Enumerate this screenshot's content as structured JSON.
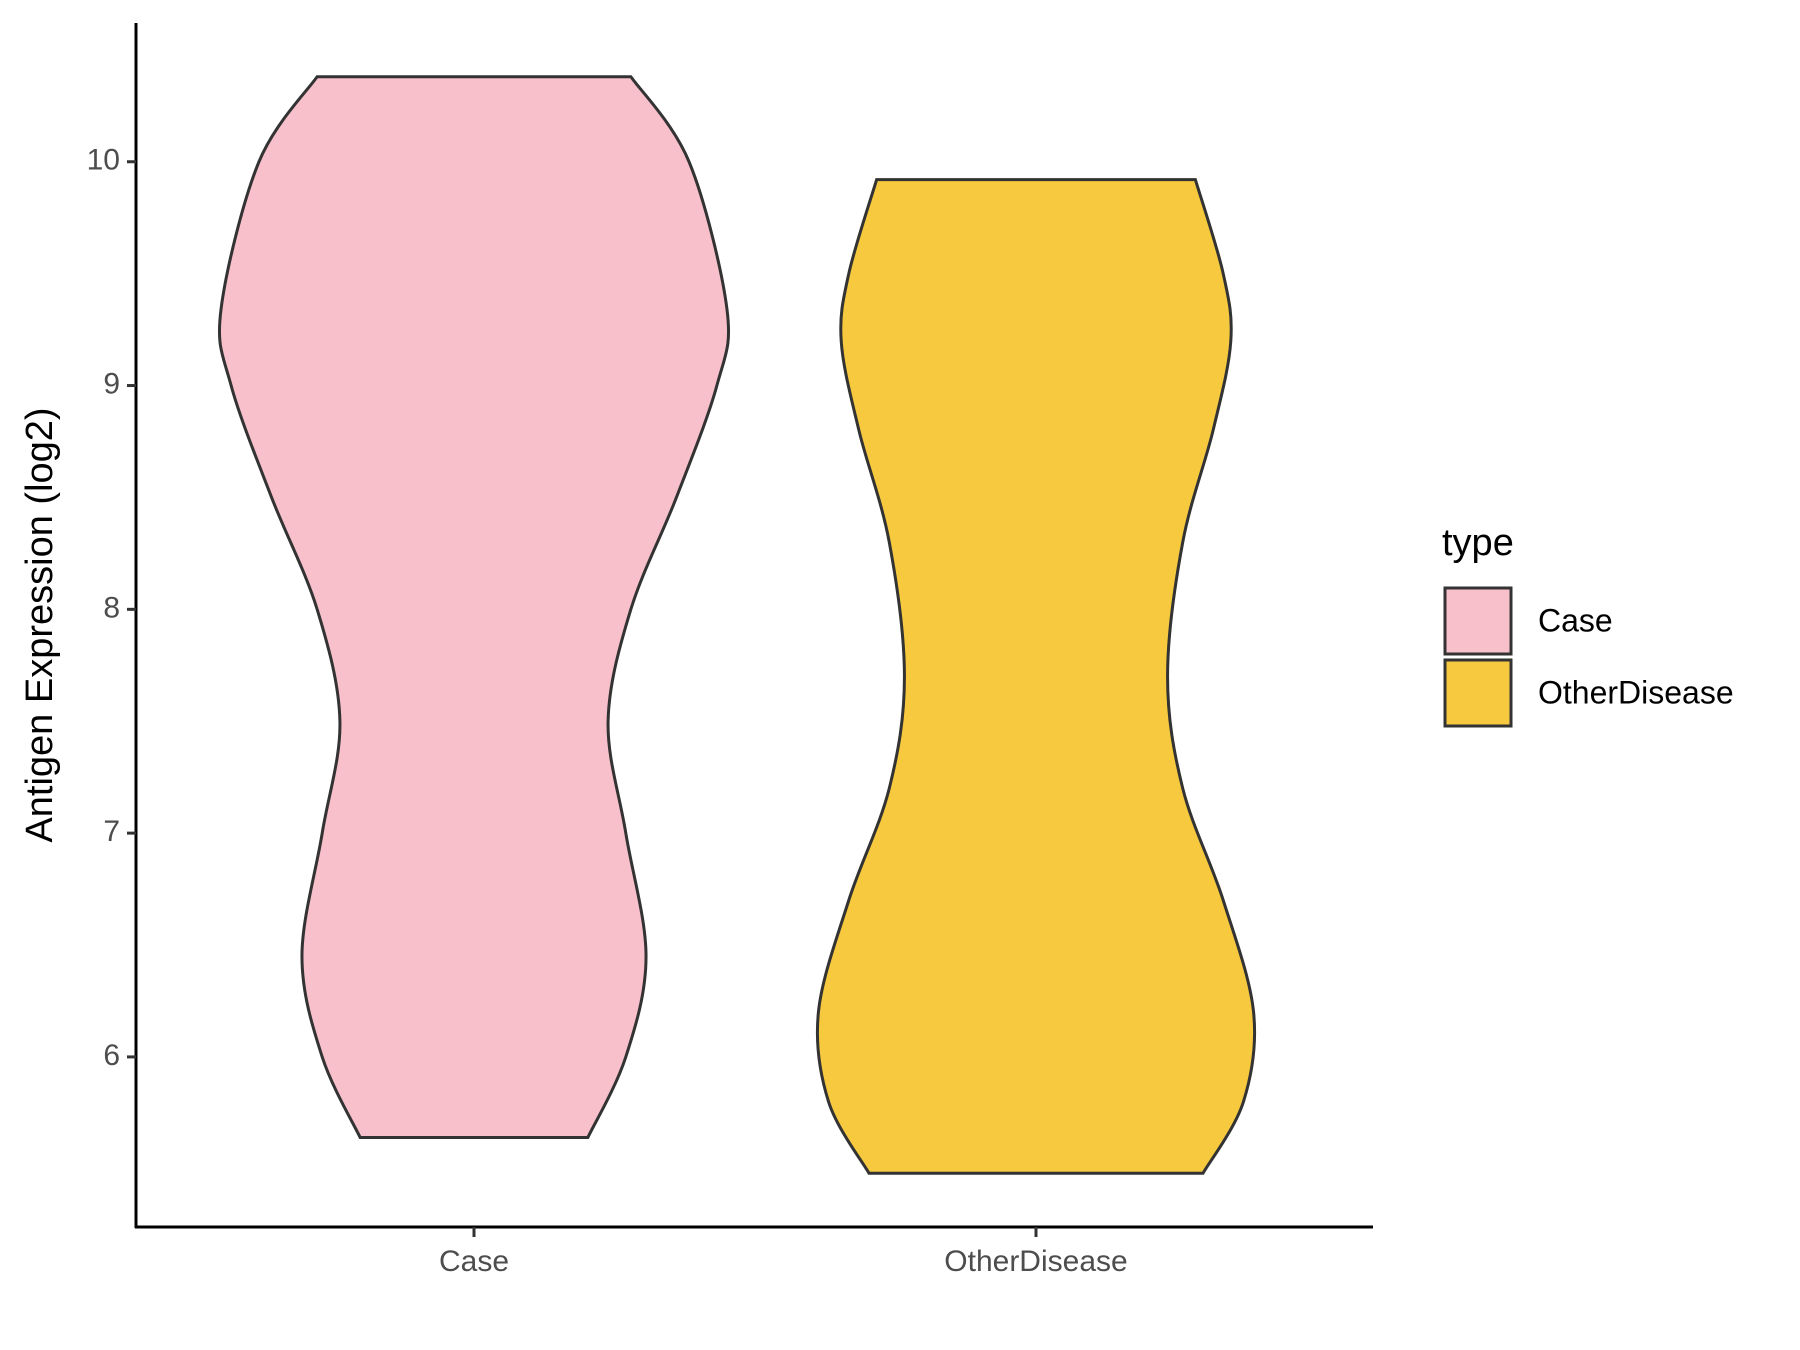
{
  "chart_data": {
    "type": "violin",
    "y_label": "Antigen Expression (log2)",
    "categories": [
      "Case",
      "OtherDisease"
    ],
    "legend_title": "type",
    "ylim": [
      5.24,
      10.62
    ],
    "yticks": [
      6,
      7,
      8,
      9,
      10
    ],
    "series": [
      {
        "name": "Case",
        "color": "#f7c0cb",
        "y": [
          10.38,
          10.0,
          9.34,
          9.0,
          8.5,
          8.0,
          7.5,
          7.0,
          6.45,
          6.0,
          5.64
        ],
        "density": [
          0.62,
          0.85,
          1.0,
          0.96,
          0.8,
          0.62,
          0.53,
          0.6,
          0.68,
          0.6,
          0.45
        ]
      },
      {
        "name": "OtherDisease",
        "color": "#f6c93f",
        "y": [
          9.92,
          9.5,
          9.2,
          8.8,
          8.3,
          7.7,
          7.2,
          6.7,
          6.2,
          5.8,
          5.48
        ],
        "density": [
          0.63,
          0.74,
          0.77,
          0.7,
          0.58,
          0.52,
          0.58,
          0.74,
          0.86,
          0.82,
          0.66
        ]
      }
    ]
  }
}
